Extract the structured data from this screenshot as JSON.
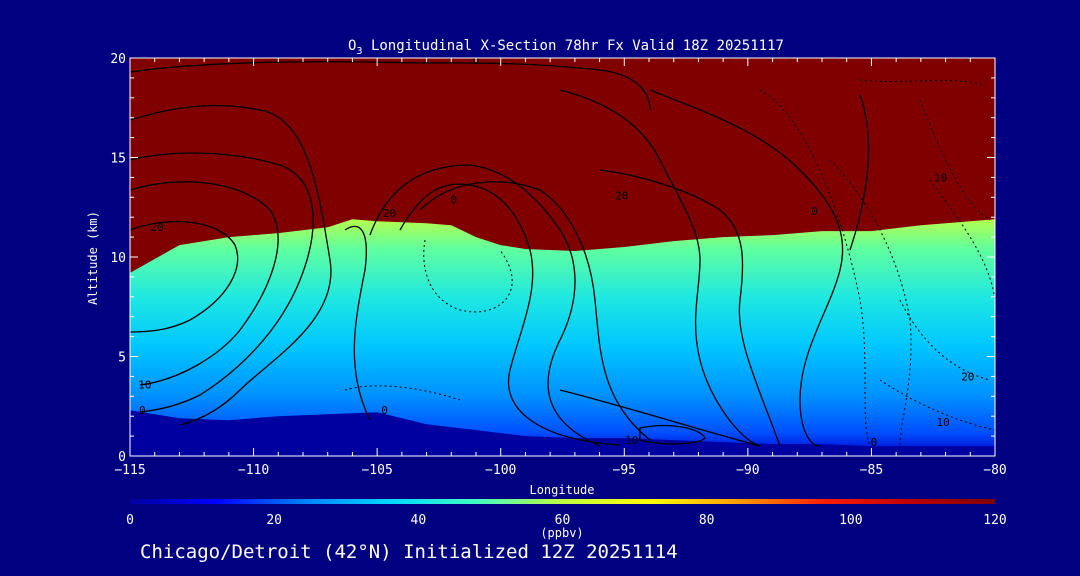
{
  "chart_data": {
    "type": "heatmap",
    "title_prefix": "O",
    "title_sub": "3",
    "title_rest": " Longitudinal X-Section 78hr  Fx Valid 18Z 20251117",
    "xlabel": "Longitude",
    "ylabel": "Altitude (km)",
    "xlim": [
      -115,
      -80
    ],
    "ylim": [
      0,
      20
    ],
    "x_ticks": [
      -115,
      -110,
      -105,
      -100,
      -95,
      -90,
      -85,
      -80
    ],
    "x_tick_labels": [
      "−115",
      "−110",
      "−105",
      "−100",
      "−95",
      "−90",
      "−85",
      "−80"
    ],
    "y_ticks": [
      0,
      5,
      10,
      15,
      20
    ],
    "y_tick_labels": [
      "0",
      "5",
      "10",
      "15",
      "20"
    ],
    "colorbar": {
      "min": 0,
      "max": 120,
      "ticks": [
        0,
        20,
        40,
        60,
        80,
        100,
        120
      ],
      "tick_labels": [
        "0",
        "20",
        "40",
        "60",
        "80",
        "100",
        "120"
      ],
      "units": "(ppbv)",
      "colors": [
        "#0000a0",
        "#0000ff",
        "#0080ff",
        "#00d8ff",
        "#40ffc0",
        "#c0ff40",
        "#ffff00",
        "#ffa000",
        "#ff2000",
        "#c00000",
        "#800000"
      ]
    },
    "boundary_layer_top_km": [
      [
        -115,
        2.3
      ],
      [
        -113,
        1.9
      ],
      [
        -111,
        1.8
      ],
      [
        -109,
        2.0
      ],
      [
        -107,
        2.1
      ],
      [
        -105,
        2.2
      ],
      [
        -103,
        1.6
      ],
      [
        -101,
        1.3
      ],
      [
        -99,
        1.0
      ],
      [
        -97,
        0.9
      ],
      [
        -95,
        0.9
      ],
      [
        -93,
        0.8
      ],
      [
        -91,
        0.7
      ],
      [
        -89,
        0.6
      ],
      [
        -87,
        0.6
      ],
      [
        -85,
        0.5
      ],
      [
        -83,
        0.5
      ],
      [
        -80,
        0.5
      ]
    ],
    "tropopause_km": [
      [
        -115,
        9.2
      ],
      [
        -113,
        10.6
      ],
      [
        -111,
        11.0
      ],
      [
        -109,
        11.2
      ],
      [
        -107,
        11.5
      ],
      [
        -106,
        11.9
      ],
      [
        -105,
        11.8
      ],
      [
        -103,
        11.7
      ],
      [
        -102,
        11.6
      ],
      [
        -101,
        11.0
      ],
      [
        -100,
        10.6
      ],
      [
        -99,
        10.4
      ],
      [
        -97,
        10.3
      ],
      [
        -95,
        10.5
      ],
      [
        -93,
        10.8
      ],
      [
        -91,
        11.0
      ],
      [
        -89,
        11.1
      ],
      [
        -87,
        11.3
      ],
      [
        -85,
        11.3
      ],
      [
        -83,
        11.6
      ],
      [
        -81,
        11.8
      ],
      [
        -80,
        11.9
      ]
    ],
    "contour_labels": [
      {
        "text": "0",
        "lon": -101.9,
        "alt": 12.7
      },
      {
        "text": "0",
        "lon": -87.3,
        "alt": 12.1
      },
      {
        "text": "20",
        "lon": -104.5,
        "alt": 12.0
      },
      {
        "text": "20",
        "lon": -113.9,
        "alt": 11.3
      },
      {
        "text": "20",
        "lon": -95.1,
        "alt": 12.9
      },
      {
        "text": "20",
        "lon": -81.1,
        "alt": 3.8
      },
      {
        "text": "10",
        "lon": -82.2,
        "alt": 13.8
      },
      {
        "text": "10",
        "lon": -114.4,
        "alt": 3.4
      },
      {
        "text": "10",
        "lon": -94.7,
        "alt": 0.6
      },
      {
        "text": "10",
        "lon": -82.1,
        "alt": 1.5
      },
      {
        "text": "0",
        "lon": -114.5,
        "alt": 2.1
      },
      {
        "text": "0",
        "lon": -104.7,
        "alt": 2.1
      },
      {
        "text": "0",
        "lon": -101.0,
        "alt": 19.7
      },
      {
        "text": "0",
        "lon": -84.9,
        "alt": 0.5
      }
    ]
  },
  "caption": "Chicago/Detroit (42°N) Initialized 12Z 20251114"
}
